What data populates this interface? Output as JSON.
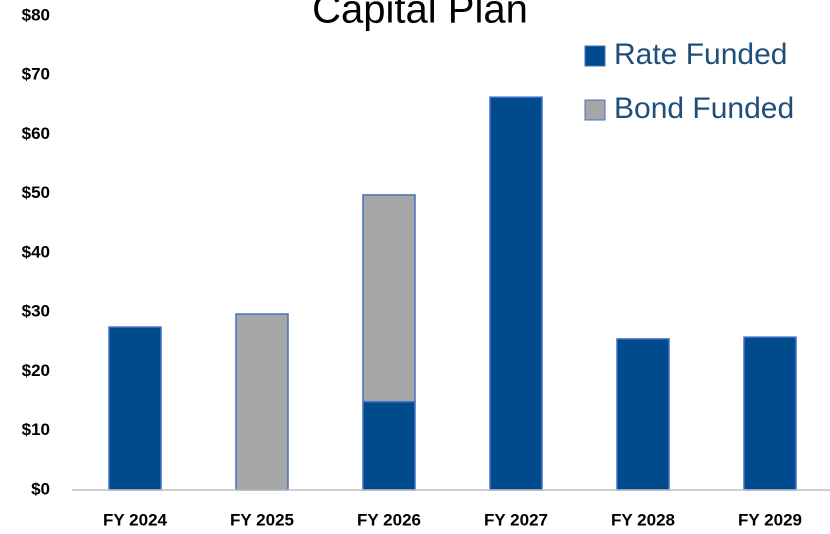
{
  "chart_data": {
    "type": "stacked_bar",
    "title": "Capital Plan",
    "categories": [
      "FY 2024",
      "FY 2025",
      "FY 2026",
      "FY 2027",
      "FY 2028",
      "FY 2029"
    ],
    "series": [
      {
        "name": "Rate Funded",
        "color": "#004b8d",
        "values": [
          27.5,
          0,
          14.9,
          66.3,
          25.5,
          25.8
        ]
      },
      {
        "name": "Bond Funded",
        "color": "#a6a6a6",
        "values": [
          0,
          29.7,
          34.9,
          0,
          0,
          0
        ]
      }
    ],
    "ylim": [
      0,
      80
    ],
    "yticks": [
      {
        "value": 0,
        "label": "$0"
      },
      {
        "value": 10,
        "label": "$10"
      },
      {
        "value": 20,
        "label": "$20"
      },
      {
        "value": 30,
        "label": "$30"
      },
      {
        "value": 40,
        "label": "$40"
      },
      {
        "value": 50,
        "label": "$50"
      },
      {
        "value": 60,
        "label": "$60"
      },
      {
        "value": 70,
        "label": "$70"
      },
      {
        "value": 80,
        "label": "$80"
      }
    ],
    "grid": false,
    "legend": "top-right"
  }
}
